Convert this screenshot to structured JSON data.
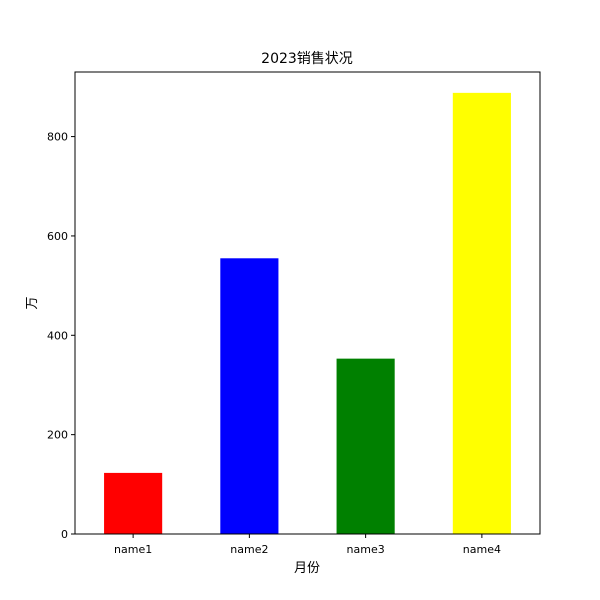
{
  "chart_data": {
    "type": "bar",
    "title": "2023销售状况",
    "xlabel": "月份",
    "ylabel": "万",
    "categories": [
      "name1",
      "name2",
      "name3",
      "name4"
    ],
    "values": [
      123,
      555,
      353,
      888
    ],
    "colors": [
      "#ff0000",
      "#0000ff",
      "#008000",
      "#ffff00"
    ],
    "ylim": [
      0,
      930
    ],
    "yticks": [
      0,
      200,
      400,
      600,
      800
    ],
    "grid": false,
    "legend": "none"
  }
}
